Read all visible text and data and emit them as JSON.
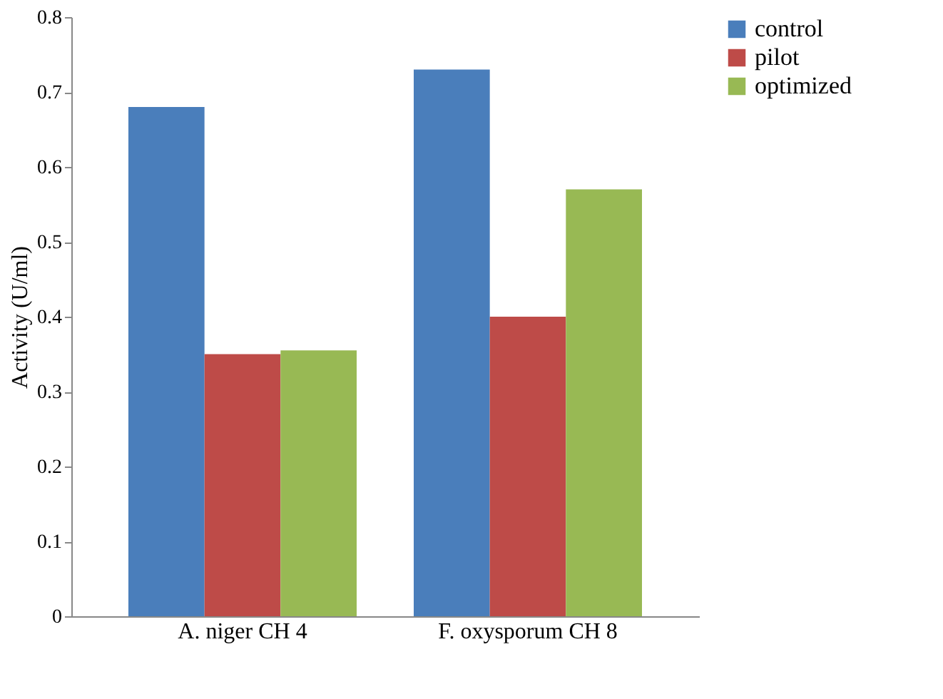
{
  "chart_data": {
    "type": "bar",
    "ylabel": "Activity (U/ml)",
    "categories": [
      "A. niger CH 4",
      "F. oxysporum CH 8"
    ],
    "series": [
      {
        "name": "control",
        "color": "#4a7ebb",
        "values": [
          0.68,
          0.73
        ]
      },
      {
        "name": "pilot",
        "color": "#be4b48",
        "values": [
          0.35,
          0.4
        ]
      },
      {
        "name": "optimized",
        "color": "#98b954",
        "values": [
          0.355,
          0.57
        ]
      }
    ],
    "ylim": [
      0,
      0.8
    ],
    "yticks": [
      0,
      0.1,
      0.2,
      0.3,
      0.4,
      0.5,
      0.6,
      0.7,
      0.8
    ],
    "grid": false,
    "legend": "right"
  }
}
